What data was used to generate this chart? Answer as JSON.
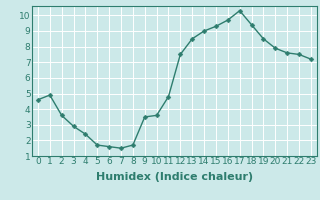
{
  "x": [
    0,
    1,
    2,
    3,
    4,
    5,
    6,
    7,
    8,
    9,
    10,
    11,
    12,
    13,
    14,
    15,
    16,
    17,
    18,
    19,
    20,
    21,
    22,
    23
  ],
  "y": [
    4.6,
    4.9,
    3.6,
    2.9,
    2.4,
    1.7,
    1.6,
    1.5,
    1.7,
    3.5,
    3.6,
    4.8,
    7.5,
    8.5,
    9.0,
    9.3,
    9.7,
    10.3,
    9.4,
    8.5,
    7.9,
    7.6,
    7.5,
    7.2
  ],
  "line_color": "#2e7d6e",
  "marker": "D",
  "marker_size": 2.5,
  "linewidth": 1.0,
  "xlabel": "Humidex (Indice chaleur)",
  "xlabel_fontsize": 8,
  "xlim": [
    -0.5,
    23.5
  ],
  "ylim": [
    1,
    10.6
  ],
  "yticks": [
    1,
    2,
    3,
    4,
    5,
    6,
    7,
    8,
    9,
    10
  ],
  "xticks": [
    0,
    1,
    2,
    3,
    4,
    5,
    6,
    7,
    8,
    9,
    10,
    11,
    12,
    13,
    14,
    15,
    16,
    17,
    18,
    19,
    20,
    21,
    22,
    23
  ],
  "background_color": "#cce9e9",
  "grid_color": "#ffffff",
  "tick_fontsize": 6.5,
  "tick_color": "#2e7d6e",
  "spine_color": "#2e7d6e"
}
